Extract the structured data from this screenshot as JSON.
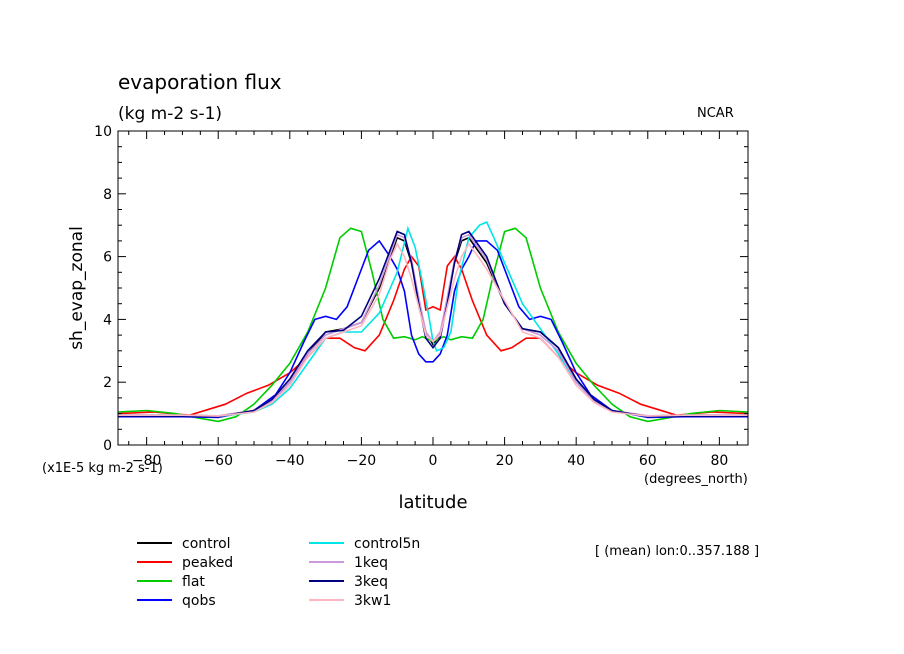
{
  "chart_data": {
    "type": "line",
    "title": "evaporation flux",
    "subtitle": "(kg m-2 s-1)",
    "credit": "NCAR",
    "ylabel": "sh_evap_zonal",
    "yunits": "(x1E-5 kg m-2 s-1)",
    "xlabel": "latitude",
    "xunits": "(degrees_north)",
    "annotation": "[ (mean) lon:0..357.188 ]",
    "xlim": [
      -88,
      88
    ],
    "ylim": [
      0,
      10
    ],
    "xticks": [
      -80,
      -60,
      -40,
      -20,
      0,
      20,
      40,
      60,
      80
    ],
    "yticks": [
      0,
      2,
      4,
      6,
      8,
      10
    ],
    "grid": false,
    "legend_position": "bottom-left",
    "series": [
      {
        "name": "control",
        "color": "#000000",
        "x": [
          -88,
          -70,
          -60,
          -50,
          -45,
          -40,
          -35,
          -30,
          -25,
          -20,
          -15,
          -10,
          -8,
          -6,
          -4,
          -2,
          0,
          2,
          4,
          6,
          8,
          10,
          15,
          20,
          25,
          30,
          35,
          40,
          45,
          50,
          60,
          70,
          88
        ],
        "y": [
          0.95,
          0.95,
          0.92,
          1.1,
          1.4,
          2.0,
          2.9,
          3.6,
          3.7,
          3.9,
          5.0,
          6.6,
          6.5,
          5.8,
          4.6,
          3.6,
          3.2,
          3.5,
          4.6,
          5.8,
          6.5,
          6.6,
          5.8,
          4.5,
          3.7,
          3.6,
          3.1,
          2.1,
          1.4,
          1.1,
          0.92,
          0.95,
          0.95
        ]
      },
      {
        "name": "peaked",
        "color": "#ff0000",
        "x": [
          -88,
          -78,
          -68,
          -58,
          -52,
          -46,
          -40,
          -35,
          -30,
          -26,
          -22,
          -19,
          -15,
          -11,
          -8,
          -6,
          -4,
          -3,
          -2,
          0,
          2,
          3,
          4,
          6,
          8,
          11,
          15,
          19,
          22,
          26,
          30,
          35,
          40,
          46,
          52,
          58,
          68,
          78,
          88
        ],
        "y": [
          1.0,
          1.05,
          0.95,
          1.3,
          1.65,
          1.9,
          2.3,
          2.8,
          3.4,
          3.4,
          3.1,
          3.0,
          3.5,
          4.6,
          5.6,
          6.0,
          5.7,
          5.0,
          4.3,
          4.4,
          4.3,
          5.0,
          5.7,
          6.0,
          5.6,
          4.6,
          3.5,
          3.0,
          3.1,
          3.4,
          3.4,
          2.8,
          2.3,
          1.9,
          1.65,
          1.3,
          0.95,
          1.05,
          1.0
        ]
      },
      {
        "name": "flat",
        "color": "#00cc00",
        "x": [
          -88,
          -80,
          -72,
          -65,
          -60,
          -55,
          -50,
          -45,
          -40,
          -35,
          -30,
          -26,
          -23,
          -20,
          -17,
          -14,
          -11,
          -8,
          -5,
          -3,
          0,
          3,
          5,
          8,
          11,
          14,
          17,
          20,
          23,
          26,
          30,
          35,
          40,
          45,
          50,
          55,
          60,
          65,
          72,
          80,
          88
        ],
        "y": [
          1.05,
          1.1,
          1.0,
          0.85,
          0.75,
          0.9,
          1.3,
          1.9,
          2.6,
          3.6,
          5.0,
          6.6,
          6.9,
          6.8,
          5.5,
          4.0,
          3.4,
          3.45,
          3.35,
          3.45,
          3.3,
          3.45,
          3.35,
          3.45,
          3.4,
          4.0,
          5.5,
          6.8,
          6.9,
          6.6,
          5.0,
          3.6,
          2.6,
          1.9,
          1.3,
          0.9,
          0.75,
          0.85,
          1.0,
          1.1,
          1.05
        ]
      },
      {
        "name": "qobs",
        "color": "#0000ff",
        "x": [
          -88,
          -70,
          -60,
          -50,
          -44,
          -40,
          -36,
          -33,
          -30,
          -27,
          -24,
          -21,
          -18,
          -15,
          -12,
          -10,
          -8,
          -6,
          -4,
          -2,
          0,
          2,
          4,
          6,
          8,
          10,
          12,
          15,
          18,
          21,
          24,
          27,
          30,
          33,
          36,
          40,
          44,
          50,
          60,
          70,
          88
        ],
        "y": [
          0.9,
          0.9,
          0.88,
          1.1,
          1.6,
          2.3,
          3.3,
          4.0,
          4.1,
          4.0,
          4.4,
          5.3,
          6.2,
          6.5,
          6.0,
          5.6,
          4.9,
          3.5,
          2.9,
          2.65,
          2.65,
          2.9,
          3.5,
          4.9,
          5.6,
          6.0,
          6.5,
          6.5,
          6.2,
          5.3,
          4.4,
          4.0,
          4.1,
          4.0,
          3.3,
          2.3,
          1.6,
          1.1,
          0.88,
          0.9,
          0.9
        ]
      },
      {
        "name": "control5n",
        "color": "#00e5e5",
        "x": [
          -88,
          -70,
          -60,
          -50,
          -45,
          -40,
          -35,
          -30,
          -25,
          -20,
          -15,
          -10,
          -7,
          -5,
          -3,
          -1,
          0,
          1,
          3,
          5,
          7,
          10,
          13,
          15,
          17,
          20,
          25,
          30,
          35,
          40,
          45,
          50,
          60,
          70,
          88
        ],
        "y": [
          0.95,
          0.95,
          0.9,
          1.05,
          1.3,
          1.8,
          2.6,
          3.4,
          3.6,
          3.6,
          4.2,
          5.5,
          6.9,
          6.3,
          5.2,
          4.0,
          3.3,
          3.0,
          3.1,
          3.6,
          5.2,
          6.6,
          7.0,
          7.1,
          6.6,
          5.8,
          4.5,
          3.7,
          2.9,
          2.0,
          1.4,
          1.1,
          0.9,
          0.95,
          0.95
        ]
      },
      {
        "name": "1keq",
        "color": "#cc99dd",
        "x": [
          -88,
          -70,
          -60,
          -50,
          -45,
          -40,
          -35,
          -30,
          -25,
          -20,
          -15,
          -10,
          -8,
          -6,
          -4,
          -2,
          0,
          2,
          4,
          6,
          8,
          10,
          15,
          20,
          25,
          30,
          35,
          40,
          45,
          50,
          60,
          70,
          88
        ],
        "y": [
          0.95,
          0.95,
          0.93,
          1.1,
          1.4,
          2.0,
          2.9,
          3.5,
          3.7,
          3.9,
          5.1,
          6.7,
          6.6,
          5.9,
          4.7,
          3.6,
          3.3,
          3.6,
          4.7,
          5.9,
          6.6,
          6.7,
          5.9,
          4.5,
          3.7,
          3.5,
          3.0,
          2.0,
          1.4,
          1.1,
          0.93,
          0.95,
          0.95
        ]
      },
      {
        "name": "3keq",
        "color": "#000080",
        "x": [
          -88,
          -70,
          -60,
          -50,
          -45,
          -40,
          -35,
          -30,
          -25,
          -20,
          -15,
          -10,
          -8,
          -6,
          -4,
          -2,
          0,
          2,
          4,
          6,
          8,
          10,
          15,
          20,
          25,
          30,
          35,
          40,
          45,
          50,
          60,
          70,
          88
        ],
        "y": [
          0.92,
          0.92,
          0.9,
          1.1,
          1.45,
          2.1,
          3.0,
          3.6,
          3.65,
          4.1,
          5.3,
          6.8,
          6.7,
          5.8,
          4.5,
          3.4,
          3.1,
          3.4,
          4.5,
          5.8,
          6.7,
          6.8,
          6.0,
          4.5,
          3.7,
          3.6,
          3.1,
          2.1,
          1.45,
          1.1,
          0.9,
          0.92,
          0.92
        ]
      },
      {
        "name": "3kw1",
        "color": "#ffb6c1",
        "x": [
          -88,
          -70,
          -60,
          -50,
          -45,
          -40,
          -35,
          -30,
          -25,
          -20,
          -15,
          -12,
          -10,
          -8,
          -6,
          -4,
          -2,
          0,
          2,
          4,
          6,
          8,
          10,
          12,
          15,
          20,
          25,
          30,
          35,
          40,
          45,
          50,
          60,
          70,
          88
        ],
        "y": [
          0.95,
          0.95,
          0.92,
          1.05,
          1.35,
          1.9,
          2.8,
          3.4,
          3.6,
          3.8,
          4.8,
          5.9,
          6.4,
          6.0,
          5.3,
          4.4,
          3.5,
          3.3,
          3.5,
          4.4,
          5.3,
          6.0,
          6.4,
          6.1,
          5.6,
          4.6,
          3.6,
          3.4,
          2.8,
          1.9,
          1.35,
          1.05,
          0.92,
          0.95,
          0.95
        ]
      }
    ]
  }
}
